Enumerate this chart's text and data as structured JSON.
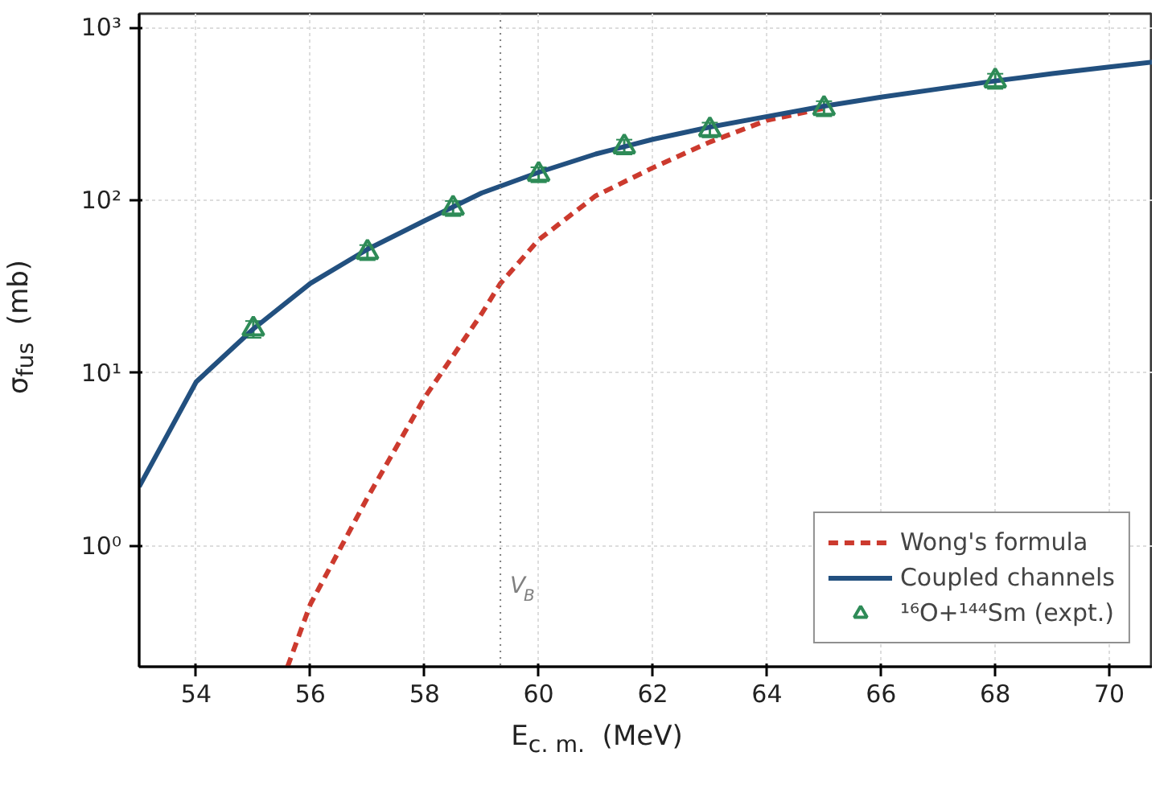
{
  "chart_data": {
    "type": "line",
    "xlabel": "E$_{c. m.}$  (MeV)",
    "ylabel": "σ$_{fus}$  (mb)",
    "xlim": [
      53,
      70.76
    ],
    "xticks": [
      54,
      56,
      58,
      60,
      62,
      64,
      66,
      68,
      70
    ],
    "ylim": [
      0.2,
      1200
    ],
    "yticks": [
      {
        "value": 1,
        "label": "10⁰"
      },
      {
        "value": 10,
        "label": "10¹"
      },
      {
        "value": 100,
        "label": "10²"
      },
      {
        "value": 1000,
        "label": "10³"
      }
    ],
    "log": "y",
    "grid": true,
    "legend": "bottom right",
    "ref_lines": [
      {
        "axis": "x",
        "value": 59.33,
        "label": "V$_{B}$",
        "color": "#808080",
        "line_style": "dotted"
      }
    ],
    "series": [
      {
        "name": "Wong's formula",
        "line_style": "dashed",
        "color": "#cc3a2e",
        "x": [
          55.6,
          56,
          57,
          58,
          59,
          59.33,
          60,
          61,
          62,
          63,
          64,
          65
        ],
        "values": [
          0.2,
          0.46,
          1.9,
          7.2,
          22,
          33,
          59,
          106,
          154,
          217,
          290,
          340
        ]
      },
      {
        "name": "Coupled channels",
        "line_style": "solid",
        "color": "#22507f",
        "x": [
          53,
          54,
          55,
          56,
          57,
          58,
          59,
          60,
          61,
          62,
          63,
          64,
          65,
          66,
          67,
          68,
          69,
          70,
          70.76
        ],
        "values": [
          2.2,
          8.9,
          18,
          33,
          52,
          76,
          110,
          145,
          185,
          225,
          265,
          305,
          350,
          395,
          440,
          490,
          540,
          590,
          630
        ]
      },
      {
        "name": "¹⁶O+¹⁴⁴Sm (expt.)",
        "type": "scatter",
        "marker": "triangle",
        "color": "#2e8b57",
        "x": [
          55,
          57,
          58.5,
          60,
          61.5,
          63,
          65,
          68
        ],
        "values": [
          18,
          50,
          90,
          141,
          204,
          256,
          340,
          490
        ],
        "errors": [
          2,
          5,
          9,
          14,
          20,
          25,
          34,
          49
        ]
      }
    ]
  }
}
